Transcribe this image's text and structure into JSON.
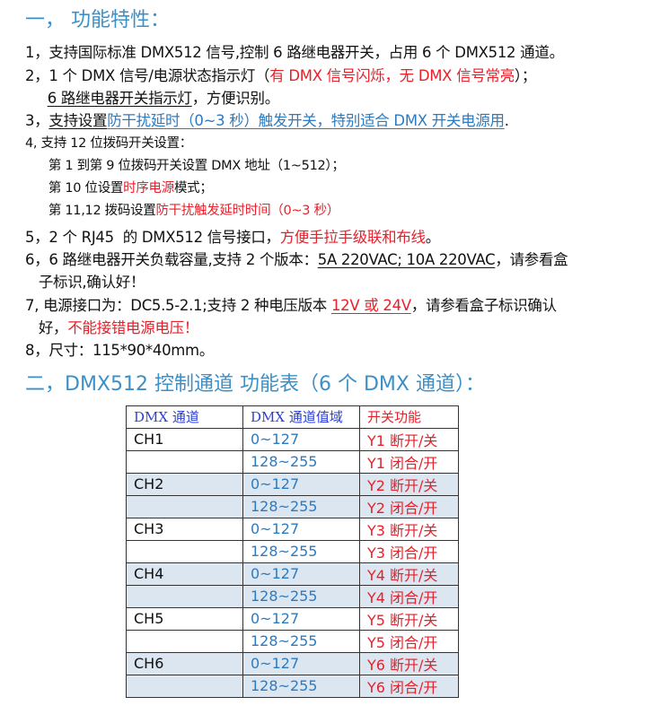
{
  "section1": {
    "title": "一，  功能特性："
  },
  "lines": [
    {
      "cls": "",
      "segs": [
        {
          "t": "1，支持国际标准 DMX512 信号,控制 6 路继电器开关，占用 6 个 DMX512 通道。"
        }
      ]
    },
    {
      "cls": "",
      "segs": [
        {
          "t": "2，1 个 DMX 信号/电源状态指示灯（"
        },
        {
          "t": "有 DMX 信号闪烁，无 DMX 信号常亮",
          "c": "red"
        },
        {
          "t": "）；"
        }
      ]
    },
    {
      "cls": "",
      "segs": [
        {
          "t": "     "
        },
        {
          "t": "6 路继电器开关指示灯",
          "u": true
        },
        {
          "t": "，方便识别。"
        }
      ]
    },
    {
      "cls": "",
      "segs": [
        {
          "t": "3，"
        },
        {
          "t": "支持设置",
          "u": true
        },
        {
          "t": "防干扰延时（0~3 秒）触发开关，特别适合 DMX 开关电源用",
          "c": "blue",
          "u": true
        },
        {
          "t": "."
        }
      ]
    },
    {
      "cls": "small",
      "segs": [
        {
          "t": "4, 支持 12 位拨码开关设置："
        }
      ]
    },
    {
      "cls": "small",
      "segs": [
        {
          "t": "      第 1 到第 9 位拨码开关设置 DMX 地址（1~512）；"
        }
      ]
    },
    {
      "cls": "small",
      "segs": [
        {
          "t": "      第 10 位设置"
        },
        {
          "t": "时序电源",
          "c": "red"
        },
        {
          "t": "模式；"
        }
      ]
    },
    {
      "cls": "small",
      "segs": [
        {
          "t": "      第 11,12 拨码设置"
        },
        {
          "t": "防干扰触发延时时间（0~3 秒）",
          "c": "red"
        }
      ]
    },
    {
      "cls": "",
      "segs": [
        {
          "t": "5，2 个 RJ45  的 DMX512 信号接口，"
        },
        {
          "t": "方便手拉手级联和布线",
          "c": "red"
        },
        {
          "t": "。"
        }
      ]
    },
    {
      "cls": "",
      "segs": [
        {
          "t": "6，6 路继电器开关负载容量,支持 2 个版本："
        },
        {
          "t": "5A 220VAC; 10A 220VAC",
          "u": true
        },
        {
          "t": "，请参看盒"
        }
      ]
    },
    {
      "cls": "",
      "segs": [
        {
          "t": "   子标识,确认好！"
        }
      ]
    },
    {
      "cls": "",
      "segs": [
        {
          "t": "7, 电源接口为：DC5.5-2.1;支持 2 种电压版本 "
        },
        {
          "t": "12V 或 24V",
          "c": "red",
          "u": true
        },
        {
          "t": "，请参看盒子标识确认"
        }
      ]
    },
    {
      "cls": "",
      "segs": [
        {
          "t": "   好，"
        },
        {
          "t": "不能接错电源电压！",
          "c": "red"
        }
      ]
    },
    {
      "cls": "",
      "segs": [
        {
          "t": "8，尺寸：115*90*40mm。"
        }
      ]
    }
  ],
  "section2": {
    "title": "二，DMX512 控制通道  功能表（6 个 DMX 通道）："
  },
  "table": {
    "headers": [
      "DMX 通道",
      "DMX 通道值域",
      "开关功能"
    ],
    "rows": [
      [
        "CH1",
        "0~127",
        "Y1 断开/关"
      ],
      [
        "",
        "128~255",
        "Y1 闭合/开"
      ],
      [
        "CH2",
        "0~127",
        "Y2 断开/关"
      ],
      [
        "",
        "128~255",
        "Y2 闭合/开"
      ],
      [
        "CH3",
        "0~127",
        "Y3 断开/关"
      ],
      [
        "",
        "128~255",
        "Y3 闭合/开"
      ],
      [
        "CH4",
        "0~127",
        "Y4 断开/关"
      ],
      [
        "",
        "128~255",
        "Y4 闭合/开"
      ],
      [
        "CH5",
        "0~127",
        "Y5 断开/关"
      ],
      [
        "",
        "128~255",
        "Y5 闭合/开"
      ],
      [
        "CH6",
        "0~127",
        "Y6 断开/关"
      ],
      [
        "",
        "128~255",
        "Y6 闭合/开"
      ]
    ],
    "shaded_channels": [
      "CH2",
      "CH4",
      "CH6"
    ],
    "shade_color": "#dce6f1"
  },
  "colors": {
    "heading": "#3d8fc7",
    "highlight_red": "#e8202a",
    "highlight_blue": "#2c7bc0"
  }
}
